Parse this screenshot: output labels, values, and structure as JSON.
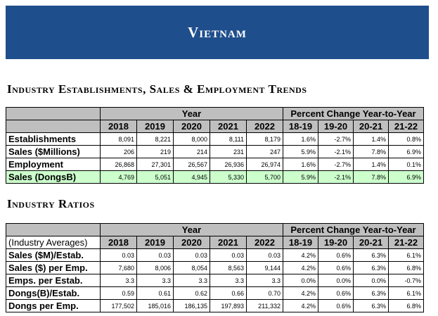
{
  "banner": {
    "title": "Vietnam"
  },
  "section1": {
    "title": "Industry Establishments, Sales & Employment Trends",
    "group_year": "Year",
    "group_pct": "Percent Change Year-to-Year",
    "years": [
      "2018",
      "2019",
      "2020",
      "2021",
      "2022"
    ],
    "pct_cols": [
      "18-19",
      "19-20",
      "20-21",
      "21-22"
    ],
    "rows": [
      {
        "label": "Establishments",
        "values": [
          "8,091",
          "8,221",
          "8,000",
          "8,111",
          "8,179"
        ],
        "pct": [
          "1.6%",
          "-2.7%",
          "1.4%",
          "0.8%"
        ]
      },
      {
        "label": "Sales ($Millions)",
        "values": [
          "206",
          "219",
          "214",
          "231",
          "247"
        ],
        "pct": [
          "5.9%",
          "-2.1%",
          "7.8%",
          "6.9%"
        ]
      },
      {
        "label": "Employment",
        "values": [
          "26,868",
          "27,301",
          "26,567",
          "26,936",
          "26,974"
        ],
        "pct": [
          "1.6%",
          "-2.7%",
          "1.4%",
          "0.1%"
        ]
      },
      {
        "label": "Sales (DongsB)",
        "values": [
          "4,769",
          "5,051",
          "4,945",
          "5,330",
          "5,700"
        ],
        "pct": [
          "5.9%",
          "-2.1%",
          "7.8%",
          "6.9%"
        ],
        "highlight": true
      }
    ]
  },
  "section2": {
    "title": "Industry Ratios",
    "group_year": "Year",
    "group_pct": "Percent Change Year-to-Year",
    "corner_label": "(Industry Averages)",
    "years": [
      "2018",
      "2019",
      "2020",
      "2021",
      "2022"
    ],
    "pct_cols": [
      "18-19",
      "19-20",
      "20-21",
      "21-22"
    ],
    "rows": [
      {
        "label": "Sales ($M)/Estab.",
        "values": [
          "0.03",
          "0.03",
          "0.03",
          "0.03",
          "0.03"
        ],
        "pct": [
          "4.2%",
          "0.6%",
          "6.3%",
          "6.1%"
        ]
      },
      {
        "label": "Sales ($) per Emp.",
        "values": [
          "7,680",
          "8,006",
          "8,054",
          "8,563",
          "9,144"
        ],
        "pct": [
          "4.2%",
          "0.6%",
          "6.3%",
          "6.8%"
        ]
      },
      {
        "label": "Emps. per Estab.",
        "values": [
          "3.3",
          "3.3",
          "3.3",
          "3.3",
          "3.3"
        ],
        "pct": [
          "0.0%",
          "0.0%",
          "0.0%",
          "-0.7%"
        ]
      },
      {
        "label": "Dongs(B)/Estab.",
        "values": [
          "0.59",
          "0.61",
          "0.62",
          "0.66",
          "0.70"
        ],
        "pct": [
          "4.2%",
          "0.6%",
          "6.3%",
          "6.1%"
        ]
      },
      {
        "label": "Dongs per Emp.",
        "values": [
          "177,502",
          "185,016",
          "186,135",
          "197,893",
          "211,332"
        ],
        "pct": [
          "4.2%",
          "0.6%",
          "6.3%",
          "6.8%"
        ]
      }
    ]
  }
}
